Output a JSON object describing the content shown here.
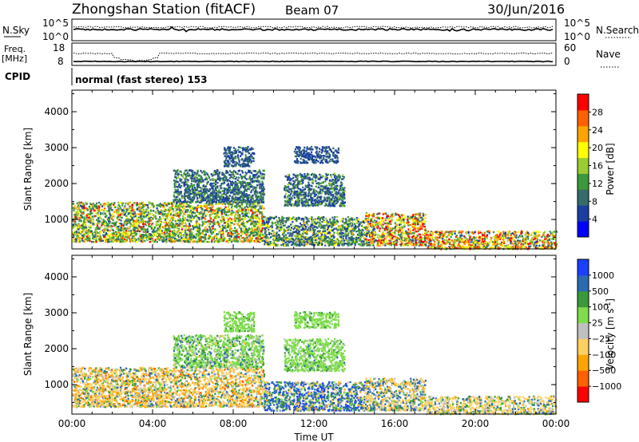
{
  "header": {
    "station": "Zhongshan Station (fitACF)",
    "beam": "Beam 07",
    "date": "30/Jun/2016"
  },
  "top_panels": {
    "nsky_label": "N.Sky",
    "nsearch_label": "N.Search",
    "nsky_ticks": [
      "10^5",
      "10^0"
    ],
    "nsearch_ticks": [
      "10^5",
      "10^0"
    ],
    "freq_label": "Freq.",
    "freq_unit": "[MHz]",
    "freq_ticks": [
      "18",
      "8"
    ],
    "nave_label": "Nave",
    "nave_ticks": [
      "60",
      "0"
    ],
    "cpid_label": "CPID",
    "cpid_value": "normal (fast stereo) 153"
  },
  "chart_data": [
    {
      "type": "heatmap",
      "name": "power",
      "ylabel": "Slant Range [km]",
      "yticks": [
        "4000",
        "3000",
        "2000",
        "1000"
      ],
      "ytick_values": [
        4000,
        3000,
        2000,
        1000
      ],
      "ylim": [
        180,
        4600
      ],
      "xlim": [
        0,
        24
      ],
      "colorbar_label": "Power [dB]",
      "colorbar_ticks": [
        "28",
        "24",
        "20",
        "16",
        "12",
        "8",
        "4"
      ],
      "colorbar_colors": [
        "#0000ff",
        "#1a3fa0",
        "#356b6b",
        "#3a9a3a",
        "#9acd32",
        "#ffff00",
        "#ffa500",
        "#ff6000",
        "#ff0000"
      ],
      "scatter_regions": [
        {
          "t0": 0.0,
          "t1": 9.5,
          "r0": 400,
          "r1": 1500,
          "weights": [
            0.05,
            0.15,
            0.25,
            0.2,
            0.15,
            0.1,
            0.05,
            0.05
          ]
        },
        {
          "t0": 9.5,
          "t1": 14.5,
          "r0": 300,
          "r1": 1100,
          "weights": [
            0.25,
            0.25,
            0.2,
            0.15,
            0.1,
            0.05,
            0,
            0
          ]
        },
        {
          "t0": 14.5,
          "t1": 17.5,
          "r0": 300,
          "r1": 1200,
          "weights": [
            0.05,
            0.1,
            0.15,
            0.15,
            0.15,
            0.15,
            0.1,
            0.15
          ]
        },
        {
          "t0": 17.5,
          "t1": 24.0,
          "r0": 200,
          "r1": 700,
          "weights": [
            0.05,
            0.1,
            0.1,
            0.15,
            0.15,
            0.15,
            0.15,
            0.15
          ]
        },
        {
          "t0": 5.0,
          "t1": 9.5,
          "r0": 1500,
          "r1": 2400,
          "weights": [
            0.35,
            0.4,
            0.2,
            0.05,
            0,
            0,
            0,
            0
          ]
        },
        {
          "t0": 10.5,
          "t1": 13.5,
          "r0": 1400,
          "r1": 2300,
          "weights": [
            0.4,
            0.3,
            0.2,
            0.1,
            0,
            0,
            0,
            0
          ]
        },
        {
          "t0": 7.5,
          "t1": 9.0,
          "r0": 2500,
          "r1": 3050,
          "weights": [
            0.6,
            0.3,
            0.1,
            0,
            0,
            0,
            0,
            0
          ]
        },
        {
          "t0": 11.0,
          "t1": 13.2,
          "r0": 2600,
          "r1": 3050,
          "weights": [
            0.7,
            0.3,
            0,
            0,
            0,
            0,
            0,
            0
          ]
        }
      ]
    },
    {
      "type": "heatmap",
      "name": "velocity",
      "ylabel": "Slant Range [km]",
      "yticks": [
        "4000",
        "3000",
        "2000",
        "1000"
      ],
      "ytick_values": [
        4000,
        3000,
        2000,
        1000
      ],
      "ylim": [
        180,
        4600
      ],
      "xlim": [
        0,
        24
      ],
      "xticks": [
        "00:00",
        "04:00",
        "08:00",
        "12:00",
        "16:00",
        "20:00",
        "00:00"
      ],
      "xtick_values": [
        0,
        4,
        8,
        12,
        16,
        20,
        24
      ],
      "xlabel": "Time UT",
      "colorbar_label": "Velocity [m s",
      "colorbar_label_sup": "-1",
      "colorbar_label_end": "]",
      "colorbar_ticks": [
        "1000",
        "500",
        "100",
        "25",
        "−25",
        "−100",
        "−500",
        "−1000"
      ],
      "colorbar_colors": [
        "#ff0000",
        "#ff6000",
        "#ffa500",
        "#ffd060",
        "#c0c0c0",
        "#7fdc4c",
        "#3a9a3a",
        "#2a6ab0",
        "#1a3fff"
      ],
      "scatter_regions": [
        {
          "t0": 0.0,
          "t1": 9.5,
          "r0": 400,
          "r1": 1500,
          "weights": [
            0.05,
            0.2,
            0.4,
            0.1,
            0.05,
            0.1,
            0.1,
            0.0
          ]
        },
        {
          "t0": 9.5,
          "t1": 14.5,
          "r0": 300,
          "r1": 1100,
          "weights": [
            0,
            0.05,
            0.1,
            0.05,
            0.1,
            0.1,
            0.4,
            0.2
          ]
        },
        {
          "t0": 14.5,
          "t1": 17.5,
          "r0": 300,
          "r1": 1200,
          "weights": [
            0,
            0.1,
            0.35,
            0.1,
            0.05,
            0.1,
            0.3,
            0
          ]
        },
        {
          "t0": 17.5,
          "t1": 24.0,
          "r0": 200,
          "r1": 700,
          "weights": [
            0,
            0.05,
            0.45,
            0.15,
            0.05,
            0.15,
            0.15,
            0
          ]
        },
        {
          "t0": 5.0,
          "t1": 9.5,
          "r0": 1500,
          "r1": 2400,
          "weights": [
            0,
            0,
            0.05,
            0.1,
            0.55,
            0.2,
            0.1,
            0
          ]
        },
        {
          "t0": 10.5,
          "t1": 13.5,
          "r0": 1400,
          "r1": 2300,
          "weights": [
            0,
            0,
            0,
            0.05,
            0.8,
            0.1,
            0.05,
            0
          ]
        },
        {
          "t0": 7.5,
          "t1": 9.0,
          "r0": 2500,
          "r1": 3050,
          "weights": [
            0,
            0,
            0,
            0,
            0.9,
            0.1,
            0,
            0
          ]
        },
        {
          "t0": 11.0,
          "t1": 13.2,
          "r0": 2600,
          "r1": 3050,
          "weights": [
            0,
            0,
            0,
            0,
            0.9,
            0.1,
            0,
            0
          ]
        }
      ]
    }
  ]
}
